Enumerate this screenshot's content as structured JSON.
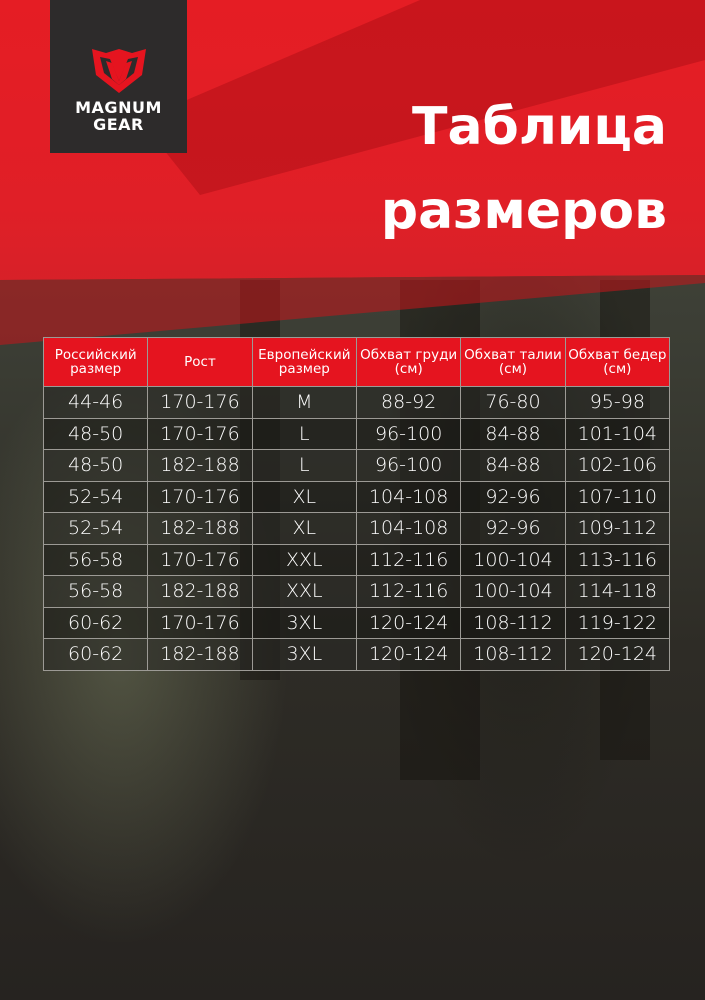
{
  "brand": {
    "logo_text_line1": "MAGNUM",
    "logo_text_line2": "GEAR"
  },
  "title": {
    "line1": "Таблица",
    "line2": "размеров"
  },
  "colors": {
    "accent": "#e5141f",
    "logo_bg": "#2d2b2b"
  },
  "table": {
    "headers": [
      "Российский размер",
      "Рост",
      "Европейский размер",
      "Обхват груди (см)",
      "Обхват талии (см)",
      "Обхват бедер (см)"
    ],
    "rows": [
      [
        "44-46",
        "170-176",
        "M",
        "88-92",
        "76-80",
        "95-98"
      ],
      [
        "48-50",
        "170-176",
        "L",
        "96-100",
        "84-88",
        "101-104"
      ],
      [
        "48-50",
        "182-188",
        "L",
        "96-100",
        "84-88",
        "102-106"
      ],
      [
        "52-54",
        "170-176",
        "XL",
        "104-108",
        "92-96",
        "107-110"
      ],
      [
        "52-54",
        "182-188",
        "XL",
        "104-108",
        "92-96",
        "109-112"
      ],
      [
        "56-58",
        "170-176",
        "XXL",
        "112-116",
        "100-104",
        "113-116"
      ],
      [
        "56-58",
        "182-188",
        "XXL",
        "112-116",
        "100-104",
        "114-118"
      ],
      [
        "60-62",
        "170-176",
        "3XL",
        "120-124",
        "108-112",
        "119-122"
      ],
      [
        "60-62",
        "182-188",
        "3XL",
        "120-124",
        "108-112",
        "120-124"
      ]
    ]
  }
}
